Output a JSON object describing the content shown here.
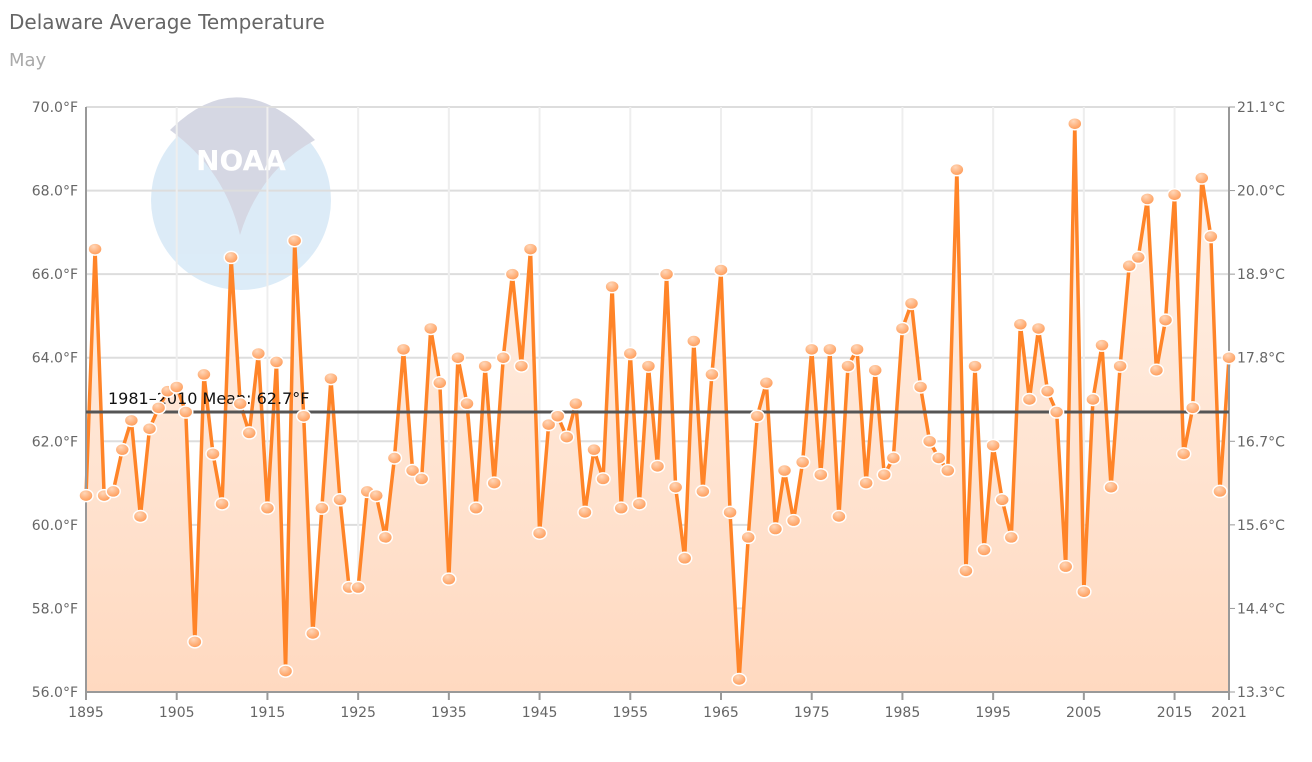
{
  "chart_data": {
    "type": "line",
    "title": "Delaware Average Temperature",
    "subtitle": "May",
    "xlabel": "",
    "ylabel": "",
    "x_start": 1895,
    "x_end": 2021,
    "ylim": [
      56,
      70
    ],
    "y_ticks": [
      "56.0°F",
      "58.0°F",
      "60.0°F",
      "62.0°F",
      "64.0°F",
      "66.0°F",
      "68.0°F",
      "70.0°F"
    ],
    "y2_ticks": [
      "13.3°C",
      "14.4°C",
      "15.6°C",
      "16.7°C",
      "17.8°C",
      "18.9°C",
      "20.0°C",
      "21.1°C"
    ],
    "x_ticks": [
      "1895",
      "1905",
      "1915",
      "1925",
      "1935",
      "1945",
      "1955",
      "1965",
      "1975",
      "1985",
      "1995",
      "2005",
      "2015",
      "2021"
    ],
    "mean": {
      "label": "1981–2010 Mean: 62.7°F",
      "value": 62.7
    },
    "values": [
      60.7,
      66.6,
      60.7,
      60.8,
      61.8,
      62.5,
      60.2,
      62.3,
      62.8,
      63.2,
      63.3,
      62.7,
      57.2,
      63.6,
      61.7,
      60.5,
      66.4,
      62.9,
      62.2,
      64.1,
      60.4,
      63.9,
      56.5,
      66.8,
      62.6,
      57.4,
      60.4,
      63.5,
      60.6,
      58.5,
      58.5,
      60.8,
      60.7,
      59.7,
      61.6,
      64.2,
      61.3,
      61.1,
      64.7,
      63.4,
      58.7,
      64.0,
      62.9,
      60.4,
      63.8,
      61.0,
      64.0,
      66.0,
      63.8,
      66.6,
      59.8,
      62.4,
      62.6,
      62.1,
      62.9,
      60.3,
      61.8,
      61.1,
      65.7,
      60.4,
      64.1,
      60.5,
      63.8,
      61.4,
      66.0,
      60.9,
      59.2,
      64.4,
      60.8,
      63.6,
      66.1,
      60.3,
      56.3,
      59.7,
      62.6,
      63.4,
      59.9,
      61.3,
      60.1,
      61.5,
      64.2,
      61.2,
      64.2,
      60.2,
      63.8,
      64.2,
      61.0,
      63.7,
      61.2,
      61.6,
      64.7,
      65.3,
      63.3,
      62.0,
      61.6,
      61.3,
      68.5,
      58.9,
      63.8,
      59.4,
      61.9,
      60.6,
      59.7,
      64.8,
      63.0,
      64.7,
      63.2,
      62.7,
      59.0,
      69.6,
      58.4,
      63.0,
      64.3,
      60.9,
      63.8,
      66.2,
      66.4,
      67.8,
      63.7,
      64.9,
      67.9,
      61.7,
      62.8,
      68.3,
      66.9,
      60.8,
      64.0
    ],
    "colors": {
      "line": "#ff8428",
      "fill": "#ffd9c0",
      "mean": "#555555"
    },
    "logo": "NOAA"
  }
}
